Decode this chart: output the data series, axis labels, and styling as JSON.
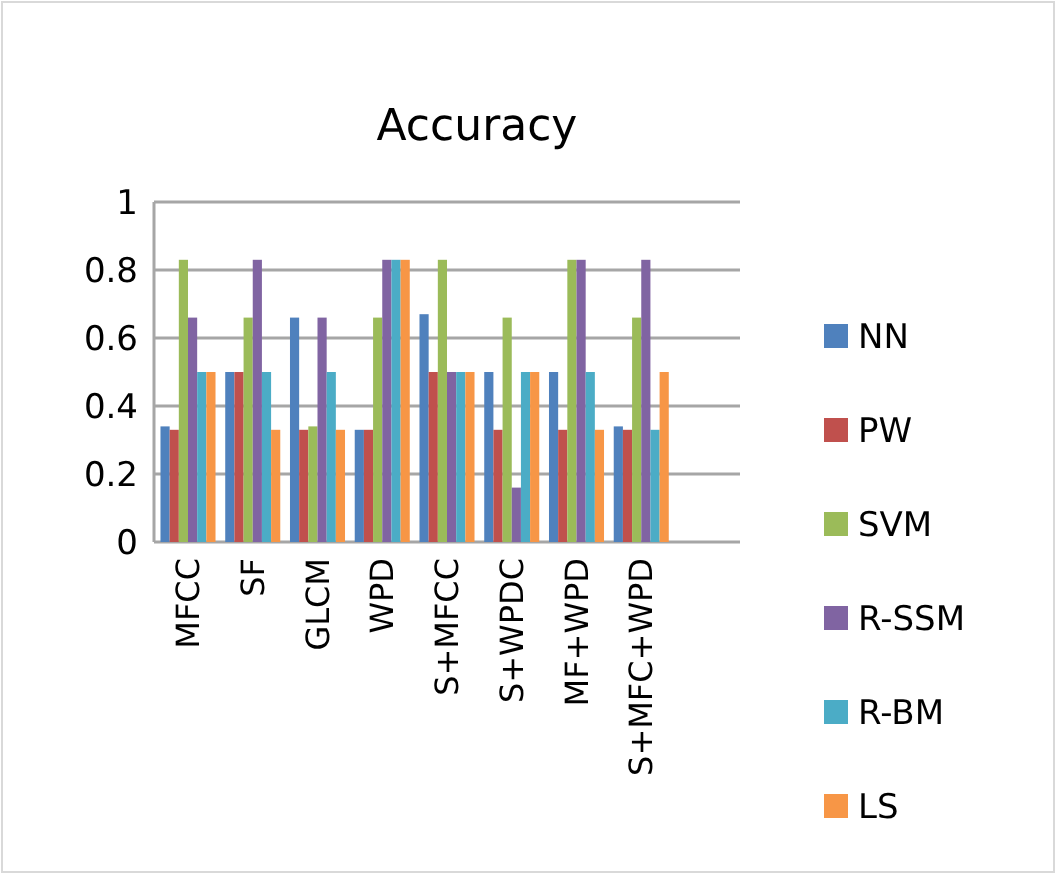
{
  "chart_data": {
    "type": "bar",
    "title": "Accuracy",
    "categories": [
      "MFCC",
      "SF",
      "GLCM",
      "WPD",
      "S+MFCC",
      "S+WPDC",
      "MF+WPD",
      "S+MFC+WPD"
    ],
    "series": [
      {
        "name": "NN",
        "color": "#4f81bd",
        "values": [
          0.34,
          0.5,
          0.66,
          0.33,
          0.67,
          0.5,
          0.5,
          0.34
        ]
      },
      {
        "name": "PW",
        "color": "#c0504d",
        "values": [
          0.33,
          0.5,
          0.33,
          0.33,
          0.5,
          0.33,
          0.33,
          0.33
        ]
      },
      {
        "name": "SVM",
        "color": "#9bbb59",
        "values": [
          0.83,
          0.66,
          0.34,
          0.66,
          0.83,
          0.66,
          0.83,
          0.66
        ]
      },
      {
        "name": "R-SSM",
        "color": "#8064a2",
        "values": [
          0.66,
          0.83,
          0.66,
          0.83,
          0.5,
          0.16,
          0.83,
          0.83
        ]
      },
      {
        "name": "R-BM",
        "color": "#4bacc6",
        "values": [
          0.5,
          0.5,
          0.5,
          0.83,
          0.5,
          0.5,
          0.5,
          0.33
        ]
      },
      {
        "name": "LS",
        "color": "#f79646",
        "values": [
          0.5,
          0.33,
          0.33,
          0.83,
          0.5,
          0.5,
          0.33,
          0.5
        ]
      }
    ],
    "ylim": [
      0,
      1
    ],
    "yticks": [
      0,
      0.2,
      0.4,
      0.6,
      0.8,
      1
    ],
    "grid": "y",
    "legend": "right"
  }
}
